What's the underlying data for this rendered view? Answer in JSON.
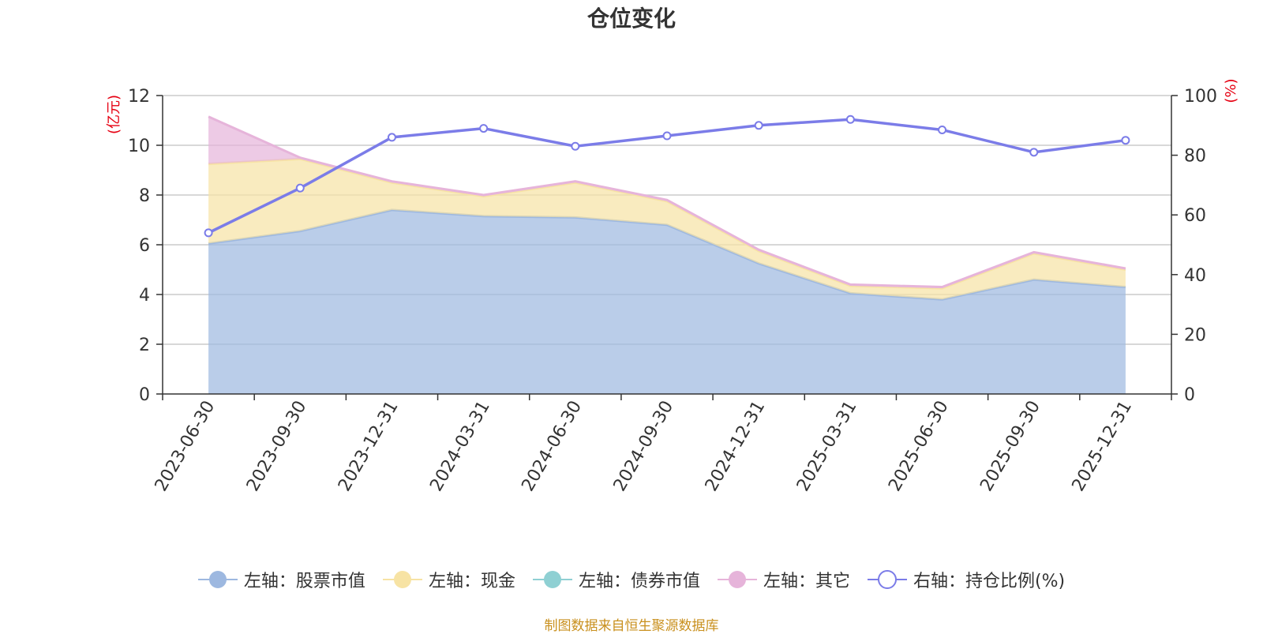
{
  "source_note": "制图数据来自恒生聚源数据库",
  "colors": {
    "stock": "#9db8e0",
    "cash": "#f7e3a4",
    "bond": "#8fd0d3",
    "other": "#e6b4da",
    "ratio": "#7b7ce8",
    "unit": "#e60012",
    "source": "#c9901e"
  },
  "chart_data": {
    "type": "area",
    "title": "仓位变化",
    "categories": [
      "2023-06-30",
      "2023-09-30",
      "2023-12-31",
      "2024-03-31",
      "2024-06-30",
      "2024-09-30",
      "2024-12-31",
      "2025-03-31",
      "2025-06-30",
      "2025-09-30",
      "2025-12-31"
    ],
    "y_left": {
      "label": "(亿元)",
      "ylim": [
        0,
        12
      ],
      "ticks": [
        0,
        2,
        4,
        6,
        8,
        10,
        12
      ]
    },
    "y_right": {
      "label": "(%)",
      "ylim": [
        0,
        100
      ],
      "ticks": [
        0,
        20,
        40,
        60,
        80,
        100
      ]
    },
    "grid": true,
    "legend_position": "bottom",
    "series": [
      {
        "name": "左轴：股票市值",
        "type": "area",
        "stack": true,
        "axis": "left",
        "color_key": "stock",
        "values": [
          6.05,
          6.55,
          7.4,
          7.15,
          7.1,
          6.8,
          5.25,
          4.05,
          3.8,
          4.6,
          4.3
        ]
      },
      {
        "name": "左轴：现金",
        "type": "area",
        "stack": true,
        "axis": "left",
        "color_key": "cash",
        "values": [
          3.2,
          2.9,
          1.1,
          0.8,
          1.4,
          0.95,
          0.5,
          0.3,
          0.45,
          1.05,
          0.7
        ]
      },
      {
        "name": "左轴：债券市值",
        "type": "area",
        "stack": true,
        "axis": "left",
        "color_key": "bond",
        "values": [
          0,
          0,
          0,
          0,
          0,
          0,
          0,
          0,
          0,
          0,
          0
        ]
      },
      {
        "name": "左轴：其它",
        "type": "area",
        "stack": true,
        "axis": "left",
        "color_key": "other",
        "values": [
          1.9,
          0.05,
          0.05,
          0.05,
          0.05,
          0.05,
          0.05,
          0.05,
          0.05,
          0.05,
          0.05
        ]
      },
      {
        "name": "右轴：持仓比例(%)",
        "type": "line",
        "axis": "right",
        "color_key": "ratio",
        "values": [
          54,
          69,
          86,
          89,
          83,
          86.5,
          90,
          92,
          88.5,
          81,
          85
        ]
      }
    ]
  }
}
